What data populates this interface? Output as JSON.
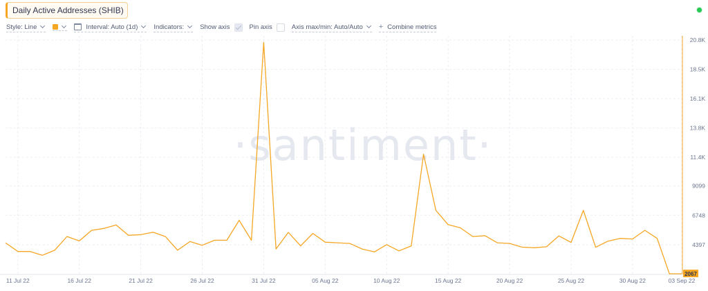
{
  "metric": {
    "title": "Daily Active Addresses (SHIB)",
    "menu_glyph": "⋮",
    "color": "#f5a623"
  },
  "status": {
    "color": "#26c953"
  },
  "toolbar": {
    "style_label": "Style: Line",
    "interval_label": "Interval: Auto (1d)",
    "indicators_label": "Indicators:",
    "show_axis_label": "Show axis",
    "show_axis_checked": true,
    "pin_axis_label": "Pin axis",
    "pin_axis_checked": false,
    "axis_maxmin_label": "Axis max/min: Auto/Auto",
    "combine_label": "Combine metrics",
    "combine_icon": "+"
  },
  "watermark": "·santiment·",
  "chart_data": {
    "type": "line",
    "title": "Daily Active Addresses (SHIB)",
    "y_ticks": [
      "20.8K",
      "18.5K",
      "16.1K",
      "13.8K",
      "11.4K",
      "9099",
      "6748",
      "4397"
    ],
    "y_tick_values": [
      20800,
      18450,
      16100,
      13750,
      11400,
      9099,
      6748,
      4397
    ],
    "ylim": [
      2067,
      20800
    ],
    "x_ticks": [
      "11 Jul 22",
      "16 Jul 22",
      "21 Jul 22",
      "26 Jul 22",
      "31 Jul 22",
      "05 Aug 22",
      "10 Aug 22",
      "15 Aug 22",
      "20 Aug 22",
      "25 Aug 22",
      "30 Aug 22",
      "03 Sep 22"
    ],
    "last_value_label": "2067",
    "grid": true,
    "series": [
      {
        "color": "#f5a623",
        "x": [
          "10 Jul 22",
          "11 Jul 22",
          "12 Jul 22",
          "13 Jul 22",
          "14 Jul 22",
          "15 Jul 22",
          "16 Jul 22",
          "17 Jul 22",
          "18 Jul 22",
          "19 Jul 22",
          "20 Jul 22",
          "21 Jul 22",
          "22 Jul 22",
          "23 Jul 22",
          "24 Jul 22",
          "25 Jul 22",
          "26 Jul 22",
          "27 Jul 22",
          "28 Jul 22",
          "29 Jul 22",
          "30 Jul 22",
          "31 Jul 22",
          "01 Aug 22",
          "02 Aug 22",
          "03 Aug 22",
          "04 Aug 22",
          "05 Aug 22",
          "06 Aug 22",
          "07 Aug 22",
          "08 Aug 22",
          "09 Aug 22",
          "10 Aug 22",
          "11 Aug 22",
          "12 Aug 22",
          "13 Aug 22",
          "14 Aug 22",
          "15 Aug 22",
          "16 Aug 22",
          "17 Aug 22",
          "18 Aug 22",
          "19 Aug 22",
          "20 Aug 22",
          "21 Aug 22",
          "22 Aug 22",
          "23 Aug 22",
          "24 Aug 22",
          "25 Aug 22",
          "26 Aug 22",
          "27 Aug 22",
          "28 Aug 22",
          "29 Aug 22",
          "30 Aug 22",
          "31 Aug 22",
          "01 Sep 22",
          "02 Sep 22",
          "03 Sep 22"
        ],
        "values": [
          4550,
          3850,
          3850,
          3550,
          3950,
          5050,
          4700,
          5550,
          5700,
          5980,
          5150,
          5200,
          5400,
          5050,
          3950,
          4650,
          4350,
          4750,
          4750,
          6350,
          4750,
          20600,
          4050,
          5380,
          4300,
          5300,
          4600,
          4550,
          4500,
          4050,
          3820,
          4400,
          3900,
          4300,
          11650,
          7150,
          6000,
          5750,
          5050,
          5120,
          4550,
          4500,
          4200,
          4150,
          4230,
          5100,
          4580,
          7150,
          4190,
          4680,
          4900,
          4850,
          5550,
          4900,
          2067,
          2067
        ]
      }
    ]
  }
}
